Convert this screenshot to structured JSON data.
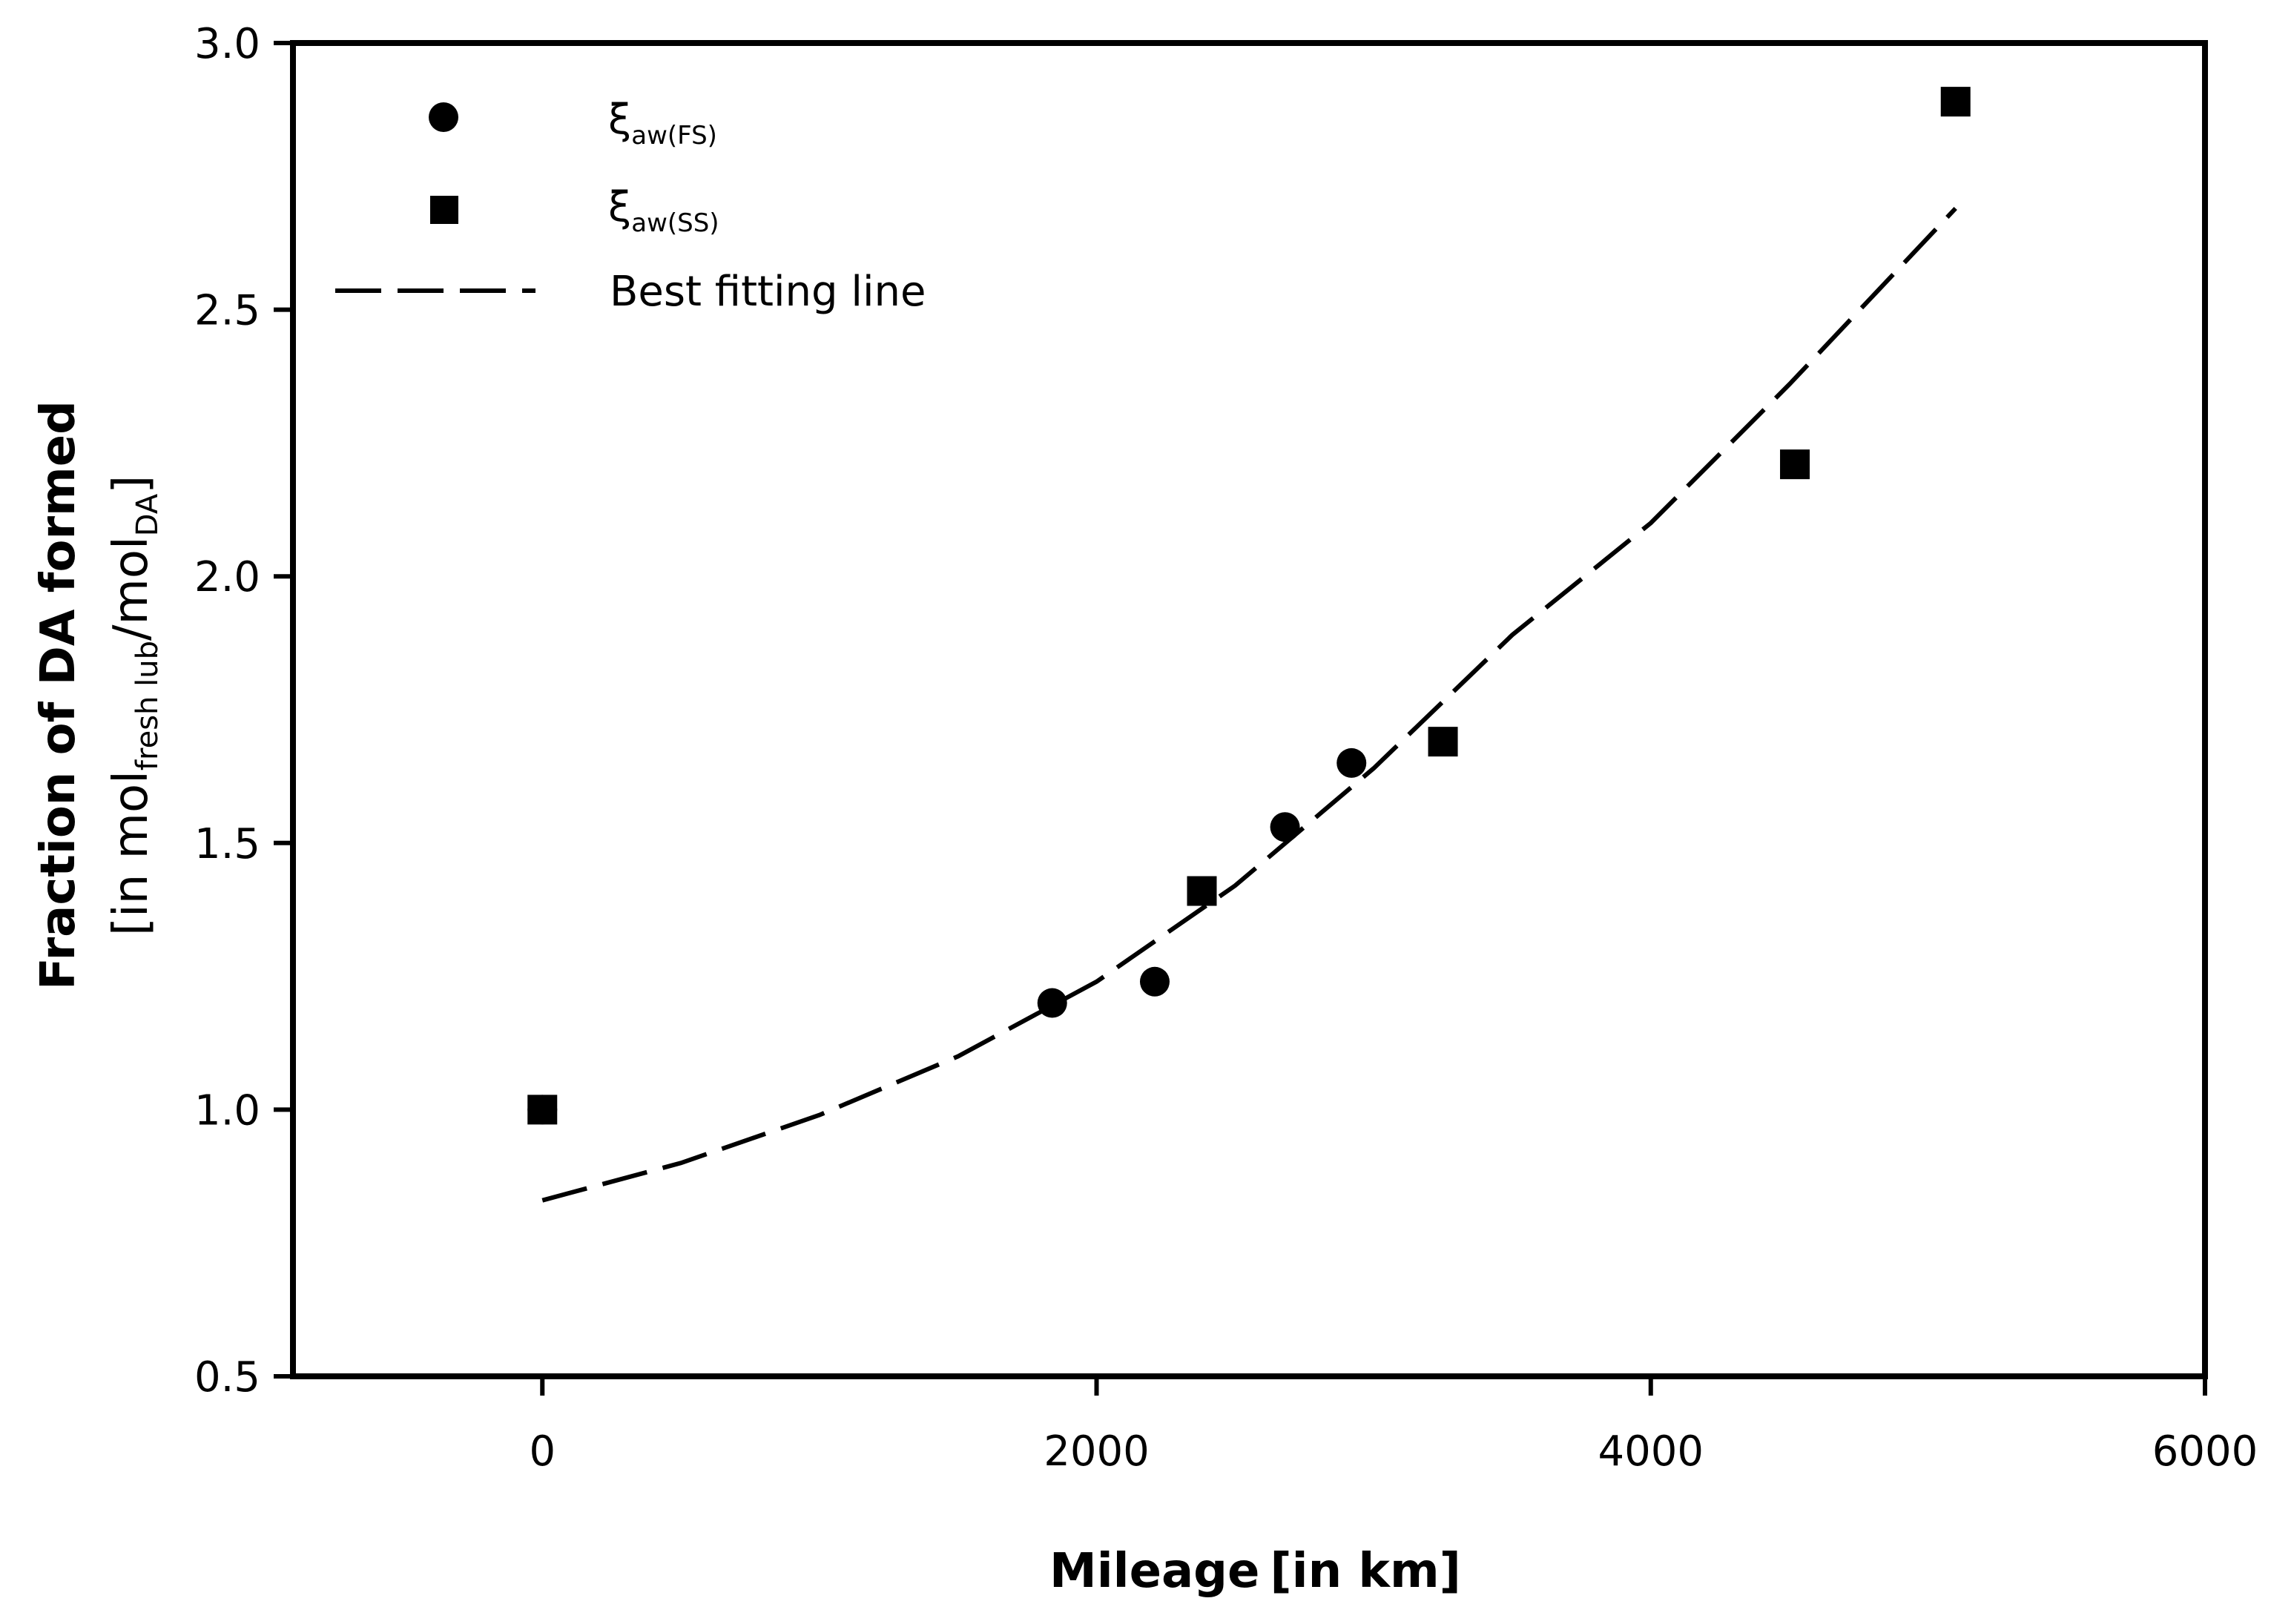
{
  "chart_data": {
    "type": "scatter",
    "xlabel": {
      "bold": "Mileage",
      "unit": "[in km]"
    },
    "ylabel": {
      "bold": "Fraction of DA formed",
      "unit_parts": [
        "[in mol",
        "fresh lub",
        "/mol",
        "DA",
        "]"
      ]
    },
    "xlim": [
      -900,
      6000
    ],
    "ylim": [
      0.5,
      3.0
    ],
    "x_ticks": [
      0,
      2000,
      4000,
      6000
    ],
    "x_tick_labels": [
      "0",
      "2000",
      "4000",
      "6000"
    ],
    "y_ticks": [
      0.5,
      1.0,
      1.5,
      2.0,
      2.5,
      3.0
    ],
    "y_tick_labels": [
      "0.5",
      "1.0",
      "1.5",
      "2.0",
      "2.5",
      "3.0"
    ],
    "grid": false,
    "legend_position": "top-left",
    "series": [
      {
        "name": "ξaw(FS)",
        "legend_main": "ξ",
        "legend_sub": "aw(FS)",
        "marker": "circle",
        "color": "#000000",
        "points": [
          {
            "x": 0,
            "y": 1.0
          },
          {
            "x": 1840,
            "y": 1.2
          },
          {
            "x": 2210,
            "y": 1.24
          },
          {
            "x": 2680,
            "y": 1.53
          },
          {
            "x": 2920,
            "y": 1.65
          }
        ]
      },
      {
        "name": "ξaw(SS)",
        "legend_main": "ξ",
        "legend_sub": "aw(SS)",
        "marker": "square",
        "color": "#000000",
        "points": [
          {
            "x": 0,
            "y": 1.0
          },
          {
            "x": 2380,
            "y": 1.41
          },
          {
            "x": 3250,
            "y": 1.69
          },
          {
            "x": 4520,
            "y": 2.21
          },
          {
            "x": 5100,
            "y": 2.89
          }
        ]
      },
      {
        "name": "Best fitting line",
        "legend_main": "Best fitting line",
        "marker": "dashed-line",
        "color": "#000000",
        "points": [
          {
            "x": 0,
            "y": 0.83
          },
          {
            "x": 500,
            "y": 0.9
          },
          {
            "x": 1000,
            "y": 0.99
          },
          {
            "x": 1500,
            "y": 1.1
          },
          {
            "x": 2000,
            "y": 1.24
          },
          {
            "x": 2500,
            "y": 1.42
          },
          {
            "x": 3000,
            "y": 1.64
          },
          {
            "x": 3500,
            "y": 1.89
          },
          {
            "x": 4000,
            "y": 2.1
          },
          {
            "x": 4500,
            "y": 2.36
          },
          {
            "x": 5100,
            "y": 2.69
          }
        ]
      }
    ]
  }
}
